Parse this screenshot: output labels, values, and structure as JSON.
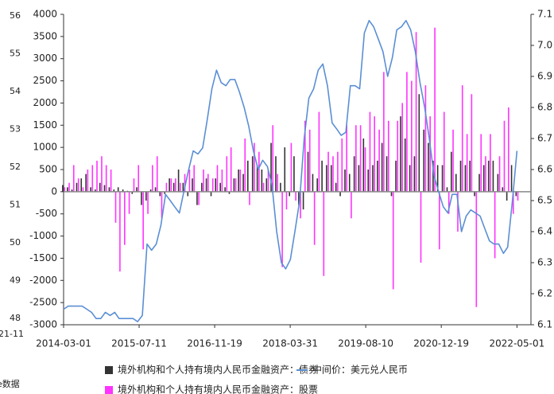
{
  "chart_data": {
    "type": "bar_line",
    "x": [
      "2014-03-01",
      "2014-04-01",
      "2014-05-01",
      "2014-06-01",
      "2014-07-01",
      "2014-08-01",
      "2014-09-01",
      "2014-10-01",
      "2014-11-01",
      "2014-12-01",
      "2015-01-01",
      "2015-02-01",
      "2015-03-01",
      "2015-04-01",
      "2015-05-01",
      "2015-06-01",
      "2015-07-01",
      "2015-08-01",
      "2015-09-01",
      "2015-10-01",
      "2015-11-01",
      "2015-12-01",
      "2016-01-01",
      "2016-02-01",
      "2016-03-01",
      "2016-04-01",
      "2016-05-01",
      "2016-06-01",
      "2016-07-01",
      "2016-08-01",
      "2016-09-01",
      "2016-10-01",
      "2016-11-01",
      "2016-12-01",
      "2017-01-01",
      "2017-02-01",
      "2017-03-01",
      "2017-04-01",
      "2017-05-01",
      "2017-06-01",
      "2017-07-01",
      "2017-08-01",
      "2017-09-01",
      "2017-10-01",
      "2017-11-01",
      "2017-12-01",
      "2018-01-01",
      "2018-02-01",
      "2018-03-01",
      "2018-04-01",
      "2018-05-01",
      "2018-06-01",
      "2018-07-01",
      "2018-08-01",
      "2018-09-01",
      "2018-10-01",
      "2018-11-01",
      "2018-12-01",
      "2019-01-01",
      "2019-02-01",
      "2019-03-01",
      "2019-04-01",
      "2019-05-01",
      "2019-06-01",
      "2019-07-01",
      "2019-08-01",
      "2019-09-01",
      "2019-10-01",
      "2019-11-01",
      "2019-12-01",
      "2020-01-01",
      "2020-02-01",
      "2020-03-01",
      "2020-04-01",
      "2020-05-01",
      "2020-06-01",
      "2020-07-01",
      "2020-08-01",
      "2020-09-01",
      "2020-10-01",
      "2020-11-01",
      "2020-12-01",
      "2021-01-01",
      "2021-02-01",
      "2021-03-01",
      "2021-04-01",
      "2021-05-01",
      "2021-06-01",
      "2021-07-01",
      "2021-08-01",
      "2021-09-01",
      "2021-10-01",
      "2021-11-01",
      "2021-12-01",
      "2022-01-01",
      "2022-02-01",
      "2022-03-01",
      "2022-04-01",
      "2022-05-01"
    ],
    "series": [
      {
        "name": "境外机构和个人持有境内人民币金融资产：债券",
        "kind": "bar",
        "color": "#333333",
        "values": [
          150,
          100,
          50,
          200,
          300,
          400,
          100,
          50,
          200,
          150,
          100,
          50,
          100,
          50,
          20,
          -50,
          100,
          -300,
          -200,
          50,
          100,
          -100,
          -50,
          300,
          200,
          500,
          200,
          -100,
          300,
          -300,
          200,
          300,
          -100,
          300,
          200,
          100,
          -50,
          300,
          500,
          400,
          700,
          800,
          600,
          500,
          300,
          1100,
          800,
          200,
          1000,
          -100,
          800,
          -300,
          -400,
          900,
          400,
          300,
          700,
          600,
          600,
          200,
          -100,
          500,
          400,
          800,
          600,
          1200,
          500,
          600,
          700,
          1100,
          800,
          -100,
          700,
          1700,
          1200,
          600,
          800,
          2200,
          1400,
          1100,
          700,
          600,
          600,
          100,
          900,
          400,
          700,
          600,
          700,
          -100,
          400,
          600,
          700,
          700,
          400,
          100,
          -200,
          600,
          -100
        ]
      },
      {
        "name": "境外机构和个人持有境内人民币金融资产：股票",
        "kind": "bar",
        "color": "#ff33ff",
        "values": [
          100,
          200,
          600,
          300,
          100,
          500,
          600,
          700,
          800,
          600,
          500,
          -700,
          -1800,
          -1200,
          -500,
          300,
          600,
          -1300,
          -500,
          600,
          800,
          -600,
          200,
          300,
          300,
          200,
          400,
          500,
          600,
          -300,
          500,
          400,
          300,
          600,
          500,
          800,
          1000,
          300,
          500,
          1200,
          -300,
          1100,
          900,
          200,
          500,
          1500,
          400,
          -1700,
          -400,
          1100,
          -200,
          -600,
          1600,
          1400,
          -1200,
          1800,
          -1900,
          900,
          800,
          900,
          1200,
          1500,
          -600,
          1500,
          1500,
          1000,
          1800,
          1700,
          1400,
          2700,
          1600,
          -2200,
          1600,
          2000,
          2700,
          2500,
          3600,
          -1600,
          2400,
          1700,
          3700,
          -1300,
          1800,
          -500,
          1400,
          -900,
          2400,
          1300,
          2200,
          -2600,
          1300,
          800,
          1300,
          -1500,
          800,
          1600,
          1900,
          -500,
          -200
        ]
      },
      {
        "name": "中间价：美元兑人民币",
        "kind": "line",
        "axis": "y2",
        "color": "#5b8fd4",
        "values": [
          6.15,
          6.16,
          6.16,
          6.16,
          6.16,
          6.15,
          6.14,
          6.12,
          6.12,
          6.14,
          6.13,
          6.14,
          6.12,
          6.12,
          6.12,
          6.12,
          6.11,
          6.13,
          6.36,
          6.34,
          6.36,
          6.42,
          6.52,
          6.5,
          6.48,
          6.46,
          6.53,
          6.6,
          6.66,
          6.65,
          6.67,
          6.76,
          6.86,
          6.92,
          6.88,
          6.87,
          6.89,
          6.89,
          6.85,
          6.8,
          6.74,
          6.66,
          6.6,
          6.63,
          6.61,
          6.55,
          6.4,
          6.3,
          6.28,
          6.31,
          6.4,
          6.5,
          6.7,
          6.83,
          6.86,
          6.92,
          6.94,
          6.87,
          6.75,
          6.73,
          6.71,
          6.72,
          6.87,
          6.87,
          6.86,
          7.04,
          7.08,
          7.06,
          7.02,
          6.98,
          6.9,
          6.96,
          7.05,
          7.06,
          7.08,
          7.05,
          6.98,
          6.88,
          6.8,
          6.7,
          6.58,
          6.53,
          6.48,
          6.46,
          6.52,
          6.52,
          6.4,
          6.45,
          6.47,
          6.46,
          6.45,
          6.41,
          6.37,
          6.36,
          6.36,
          6.33,
          6.35,
          6.5,
          6.66
        ]
      }
    ],
    "xlim": [
      "2014-03-01",
      "2022-08-01"
    ],
    "xticks": [
      "2014-03-01",
      "2015-07-11",
      "2016-11-19",
      "2018-03-31",
      "2019-08-10",
      "2020-12-19",
      "2022-05-01"
    ],
    "ylim": [
      -3000,
      4000
    ],
    "yticks": [
      -3000,
      -2500,
      -2000,
      -1500,
      -1000,
      -500,
      0,
      500,
      1000,
      1500,
      2000,
      2500,
      3000,
      3500,
      4000
    ],
    "y2lim": [
      6.1,
      7.1
    ],
    "y2ticks": [
      6.1,
      6.2,
      6.3,
      6.4,
      6.5,
      6.6,
      6.7,
      6.8,
      6.9,
      {
        "value": 7,
        "label": "7.0"
      },
      7.1
    ]
  },
  "fragment": {
    "yticks": [
      56,
      55,
      54,
      53,
      52,
      51,
      50,
      49,
      48
    ],
    "xlabel": "21-11",
    "source": "e数据"
  }
}
